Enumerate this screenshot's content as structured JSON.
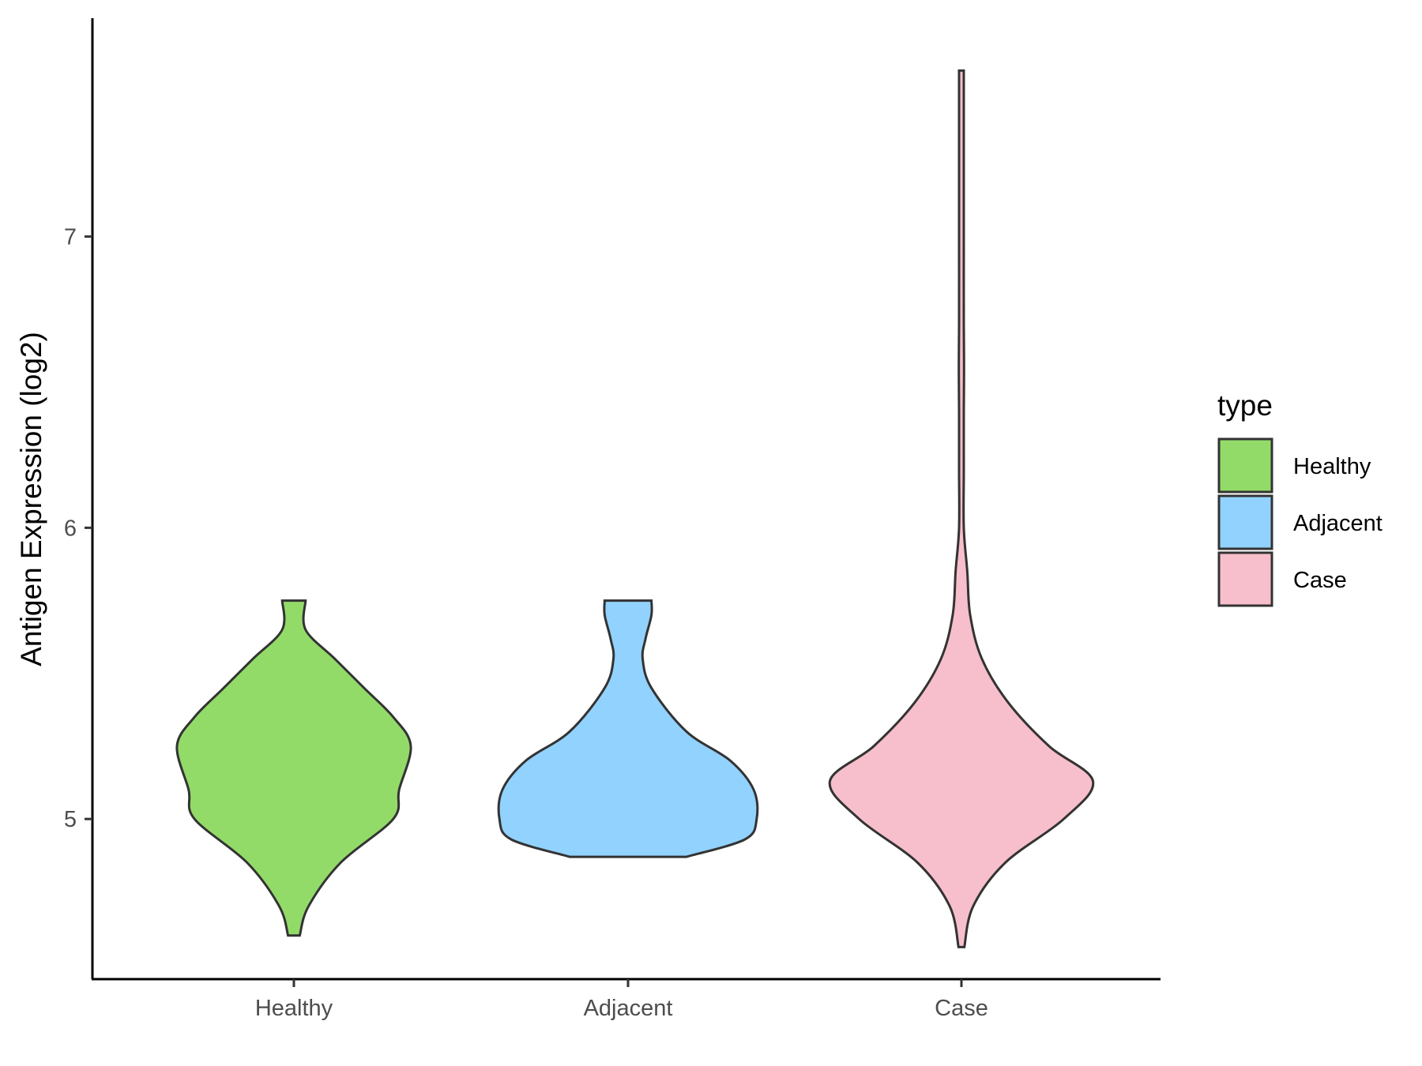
{
  "chart_data": {
    "type": "violin",
    "xlabel": "",
    "ylabel": "Antigen Expression (log2)",
    "ylim": [
      4.45,
      7.75
    ],
    "yticks": [
      5,
      6,
      7
    ],
    "ytick_labels": [
      "5",
      "6",
      "7"
    ],
    "grid": false,
    "categories": [
      "Healthy",
      "Adjacent",
      "Case"
    ],
    "legend": {
      "title": "type",
      "position": "right",
      "entries": [
        "Healthy",
        "Adjacent",
        "Case"
      ]
    },
    "series": [
      {
        "name": "Healthy",
        "color": "#93db69",
        "min": 4.6,
        "max": 5.75,
        "profile": [
          [
            4.6,
            0.02
          ],
          [
            4.7,
            0.05
          ],
          [
            4.85,
            0.16
          ],
          [
            5.0,
            0.34
          ],
          [
            5.1,
            0.36
          ],
          [
            5.25,
            0.4
          ],
          [
            5.35,
            0.34
          ],
          [
            5.45,
            0.24
          ],
          [
            5.55,
            0.14
          ],
          [
            5.65,
            0.04
          ],
          [
            5.75,
            0.04
          ]
        ]
      },
      {
        "name": "Adjacent",
        "color": "#92d2fe",
        "min": 4.87,
        "max": 5.75,
        "profile": [
          [
            4.87,
            0.2
          ],
          [
            4.93,
            0.4
          ],
          [
            5.0,
            0.44
          ],
          [
            5.1,
            0.43
          ],
          [
            5.2,
            0.35
          ],
          [
            5.3,
            0.2
          ],
          [
            5.45,
            0.08
          ],
          [
            5.55,
            0.05
          ],
          [
            5.62,
            0.06
          ],
          [
            5.7,
            0.08
          ],
          [
            5.75,
            0.08
          ]
        ]
      },
      {
        "name": "Case",
        "color": "#f7bfcb",
        "min": 4.56,
        "max": 7.57,
        "profile": [
          [
            4.56,
            0.01
          ],
          [
            4.7,
            0.04
          ],
          [
            4.85,
            0.15
          ],
          [
            5.0,
            0.35
          ],
          [
            5.13,
            0.45
          ],
          [
            5.25,
            0.3
          ],
          [
            5.4,
            0.16
          ],
          [
            5.55,
            0.07
          ],
          [
            5.7,
            0.03
          ],
          [
            5.85,
            0.02
          ],
          [
            6.0,
            0.008
          ],
          [
            6.2,
            0.007
          ],
          [
            6.4,
            0.003
          ],
          [
            6.55,
            0.009
          ],
          [
            6.7,
            0.004
          ],
          [
            7.0,
            0.006
          ],
          [
            7.2,
            0.003
          ],
          [
            7.57,
            0.004
          ]
        ]
      }
    ]
  }
}
